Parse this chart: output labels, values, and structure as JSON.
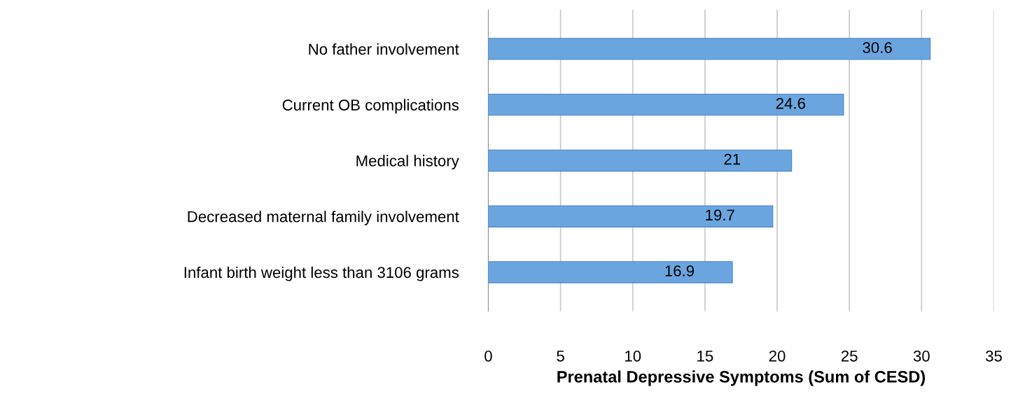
{
  "chart_data": {
    "type": "bar",
    "orientation": "horizontal",
    "categories": [
      "No father involvement",
      "Current OB complications",
      "Medical history",
      "Decreased maternal family involvement",
      "Infant birth weight less than 3106 grams"
    ],
    "values": [
      30.6,
      24.6,
      21,
      19.7,
      16.9
    ],
    "color": "#6aa5e0",
    "xlabel": "Prenatal Depressive Symptoms (Sum of CESD)",
    "xlim": [
      0,
      35
    ],
    "xticks": [
      0,
      5,
      10,
      15,
      20,
      25,
      30,
      35
    ],
    "grid": "x",
    "data_labels": true
  }
}
